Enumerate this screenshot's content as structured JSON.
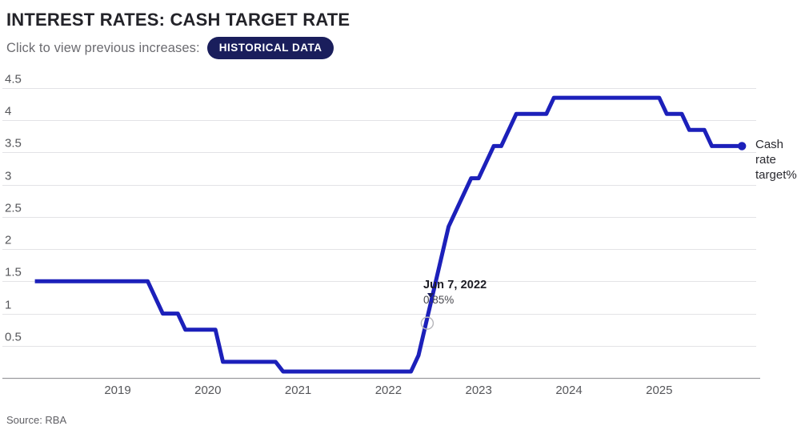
{
  "header": {
    "title": "INTEREST RATES: CASH TARGET RATE",
    "subtitle": "Click to view previous increases:",
    "button_label": "HISTORICAL DATA"
  },
  "legend": {
    "label": "Cash rate target%"
  },
  "annotation": {
    "date": "Jun 7, 2022",
    "value": "0.85%",
    "point_month": "2022-06",
    "point_value": 0.85
  },
  "footer": {
    "source": "Source: RBA"
  },
  "colors": {
    "line": "#1C20BA",
    "button_bg": "#1A1E5C",
    "button_text": "#FFFFFF",
    "gridline": "#E3E3E6",
    "axis_line": "#9B9B9F",
    "axis_label": "#55565A",
    "marker_ring": "#B5B5BA"
  },
  "chart_data": {
    "type": "line",
    "title": "INTEREST RATES: CASH TARGET RATE",
    "xlabel": "",
    "ylabel": "Cash rate target%",
    "x_ticks": [
      2019,
      2020,
      2021,
      2022,
      2023,
      2024,
      2025
    ],
    "y_ticks": [
      0.5,
      1,
      1.5,
      2,
      2.5,
      3,
      3.5,
      4,
      4.5
    ],
    "ylim": [
      0,
      4.7
    ],
    "grid": true,
    "legend_position": "right-of-line-end",
    "series": [
      {
        "name": "Cash rate target%",
        "points": [
          [
            "2018-02",
            1.5
          ],
          [
            "2018-03",
            1.5
          ],
          [
            "2018-04",
            1.5
          ],
          [
            "2018-05",
            1.5
          ],
          [
            "2018-06",
            1.5
          ],
          [
            "2018-07",
            1.5
          ],
          [
            "2018-08",
            1.5
          ],
          [
            "2018-09",
            1.5
          ],
          [
            "2018-10",
            1.5
          ],
          [
            "2018-11",
            1.5
          ],
          [
            "2018-12",
            1.5
          ],
          [
            "2019-01",
            1.5
          ],
          [
            "2019-02",
            1.5
          ],
          [
            "2019-03",
            1.5
          ],
          [
            "2019-04",
            1.5
          ],
          [
            "2019-05",
            1.5
          ],
          [
            "2019-06",
            1.25
          ],
          [
            "2019-07",
            1.0
          ],
          [
            "2019-08",
            1.0
          ],
          [
            "2019-09",
            1.0
          ],
          [
            "2019-10",
            0.75
          ],
          [
            "2019-11",
            0.75
          ],
          [
            "2019-12",
            0.75
          ],
          [
            "2020-01",
            0.75
          ],
          [
            "2020-02",
            0.75
          ],
          [
            "2020-03",
            0.25
          ],
          [
            "2020-04",
            0.25
          ],
          [
            "2020-05",
            0.25
          ],
          [
            "2020-06",
            0.25
          ],
          [
            "2020-07",
            0.25
          ],
          [
            "2020-08",
            0.25
          ],
          [
            "2020-09",
            0.25
          ],
          [
            "2020-10",
            0.25
          ],
          [
            "2020-11",
            0.1
          ],
          [
            "2020-12",
            0.1
          ],
          [
            "2021-01",
            0.1
          ],
          [
            "2021-02",
            0.1
          ],
          [
            "2021-03",
            0.1
          ],
          [
            "2021-04",
            0.1
          ],
          [
            "2021-05",
            0.1
          ],
          [
            "2021-06",
            0.1
          ],
          [
            "2021-07",
            0.1
          ],
          [
            "2021-08",
            0.1
          ],
          [
            "2021-09",
            0.1
          ],
          [
            "2021-10",
            0.1
          ],
          [
            "2021-11",
            0.1
          ],
          [
            "2021-12",
            0.1
          ],
          [
            "2022-01",
            0.1
          ],
          [
            "2022-02",
            0.1
          ],
          [
            "2022-03",
            0.1
          ],
          [
            "2022-04",
            0.1
          ],
          [
            "2022-05",
            0.35
          ],
          [
            "2022-06",
            0.85
          ],
          [
            "2022-07",
            1.35
          ],
          [
            "2022-08",
            1.85
          ],
          [
            "2022-09",
            2.35
          ],
          [
            "2022-10",
            2.6
          ],
          [
            "2022-11",
            2.85
          ],
          [
            "2022-12",
            3.1
          ],
          [
            "2023-01",
            3.1
          ],
          [
            "2023-02",
            3.35
          ],
          [
            "2023-03",
            3.6
          ],
          [
            "2023-04",
            3.6
          ],
          [
            "2023-05",
            3.85
          ],
          [
            "2023-06",
            4.1
          ],
          [
            "2023-07",
            4.1
          ],
          [
            "2023-08",
            4.1
          ],
          [
            "2023-09",
            4.1
          ],
          [
            "2023-10",
            4.1
          ],
          [
            "2023-11",
            4.35
          ],
          [
            "2023-12",
            4.35
          ],
          [
            "2024-01",
            4.35
          ],
          [
            "2024-02",
            4.35
          ],
          [
            "2024-03",
            4.35
          ],
          [
            "2024-04",
            4.35
          ],
          [
            "2024-05",
            4.35
          ],
          [
            "2024-06",
            4.35
          ],
          [
            "2024-07",
            4.35
          ],
          [
            "2024-08",
            4.35
          ],
          [
            "2024-09",
            4.35
          ],
          [
            "2024-10",
            4.35
          ],
          [
            "2024-11",
            4.35
          ],
          [
            "2024-12",
            4.35
          ],
          [
            "2025-01",
            4.35
          ],
          [
            "2025-02",
            4.1
          ],
          [
            "2025-03",
            4.1
          ],
          [
            "2025-04",
            4.1
          ],
          [
            "2025-05",
            3.85
          ],
          [
            "2025-06",
            3.85
          ],
          [
            "2025-07",
            3.85
          ],
          [
            "2025-08",
            3.6
          ],
          [
            "2025-09",
            3.6
          ],
          [
            "2025-10",
            3.6
          ],
          [
            "2025-11",
            3.6
          ],
          [
            "2025-12",
            3.6
          ]
        ]
      }
    ]
  }
}
